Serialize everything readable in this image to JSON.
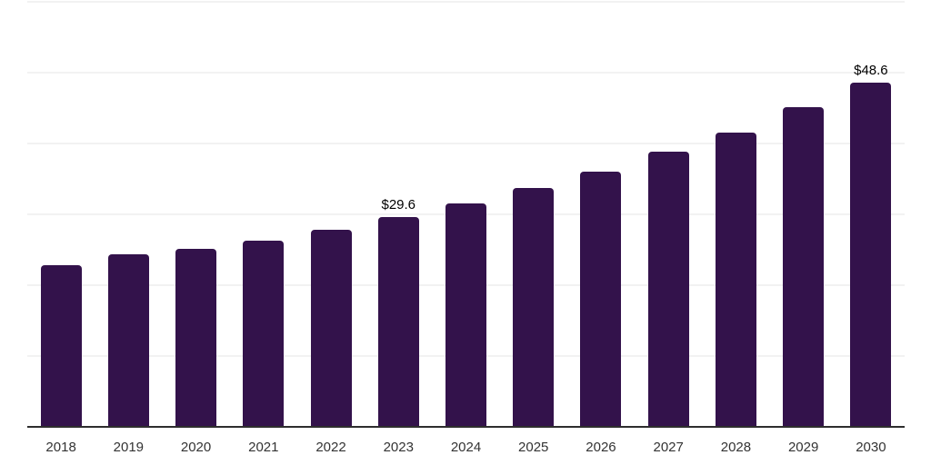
{
  "chart_data": {
    "type": "bar",
    "title": "",
    "xlabel": "",
    "ylabel": "",
    "categories": [
      "2018",
      "2019",
      "2020",
      "2021",
      "2022",
      "2023",
      "2024",
      "2025",
      "2026",
      "2027",
      "2028",
      "2029",
      "2030"
    ],
    "values": [
      22.8,
      24.4,
      25.1,
      26.3,
      27.8,
      29.6,
      31.5,
      33.7,
      36.0,
      38.8,
      41.6,
      45.1,
      48.6
    ],
    "data_labels": [
      {
        "category": "2023",
        "text": "$29.6"
      },
      {
        "category": "2030",
        "text": "$48.6"
      }
    ],
    "ylim": [
      0,
      60
    ],
    "gridline_values": [
      10,
      20,
      30,
      40,
      50,
      60
    ],
    "grid": "horizontal",
    "legend": "none",
    "colors": {
      "bar": "#33124b",
      "axis": "#2e2e2e",
      "gridline": "#f2f2f2",
      "tick_label": "#333333",
      "data_label": "#000000",
      "background": "#ffffff"
    }
  }
}
